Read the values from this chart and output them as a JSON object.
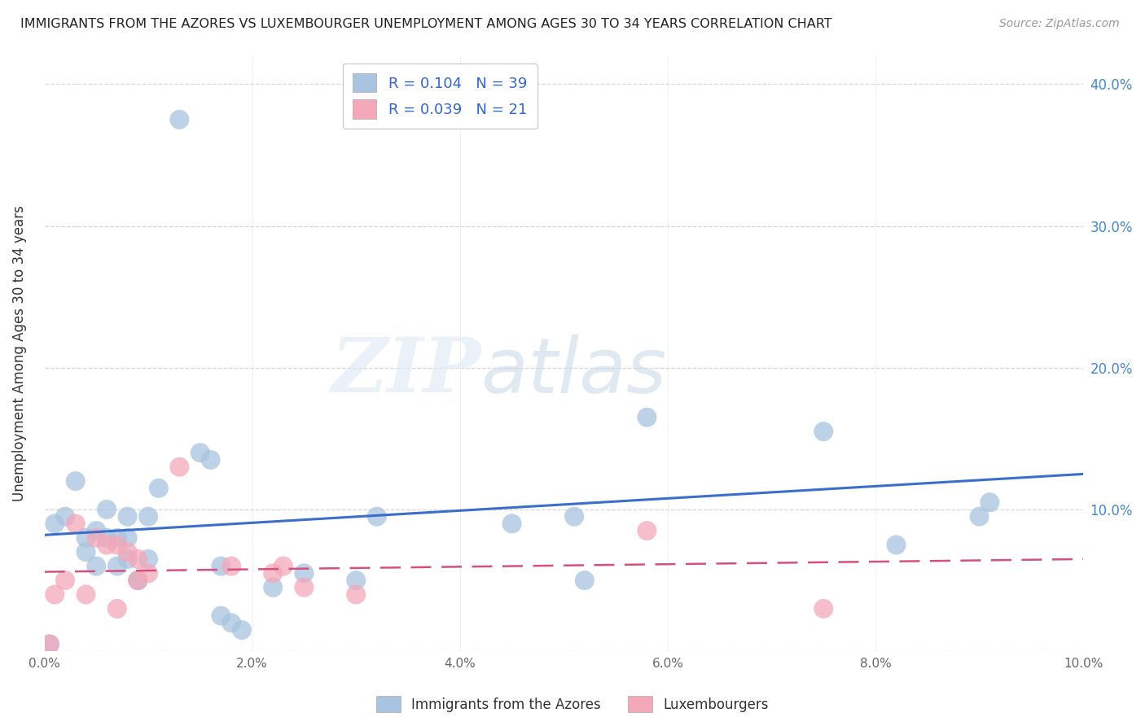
{
  "title": "IMMIGRANTS FROM THE AZORES VS LUXEMBOURGER UNEMPLOYMENT AMONG AGES 30 TO 34 YEARS CORRELATION CHART",
  "source": "Source: ZipAtlas.com",
  "ylabel": "Unemployment Among Ages 30 to 34 years",
  "xlim": [
    0.0,
    0.1
  ],
  "ylim": [
    0.0,
    0.42
  ],
  "xticks": [
    0.0,
    0.02,
    0.04,
    0.06,
    0.08,
    0.1
  ],
  "yticks": [
    0.0,
    0.1,
    0.2,
    0.3,
    0.4
  ],
  "xticklabels": [
    "0.0%",
    "2.0%",
    "4.0%",
    "6.0%",
    "8.0%",
    "10.0%"
  ],
  "yticklabels_right": [
    "",
    "10.0%",
    "20.0%",
    "30.0%",
    "40.0%"
  ],
  "blue_R": 0.104,
  "blue_N": 39,
  "pink_R": 0.039,
  "pink_N": 21,
  "blue_color": "#a8c4e0",
  "pink_color": "#f4a7b9",
  "blue_line_color": "#3a6ecc",
  "pink_line_color": "#d45080",
  "watermark_zip": "ZIP",
  "watermark_atlas": "atlas",
  "legend_label_blue": "Immigrants from the Azores",
  "legend_label_pink": "Luxembourgers",
  "blue_x": [
    0.0005,
    0.001,
    0.002,
    0.003,
    0.004,
    0.004,
    0.005,
    0.005,
    0.006,
    0.006,
    0.007,
    0.007,
    0.008,
    0.008,
    0.008,
    0.009,
    0.009,
    0.01,
    0.01,
    0.011,
    0.013,
    0.015,
    0.016,
    0.017,
    0.017,
    0.018,
    0.019,
    0.022,
    0.025,
    0.03,
    0.032,
    0.045,
    0.051,
    0.052,
    0.058,
    0.075,
    0.082,
    0.09,
    0.091
  ],
  "blue_y": [
    0.005,
    0.09,
    0.095,
    0.12,
    0.07,
    0.08,
    0.06,
    0.085,
    0.08,
    0.1,
    0.06,
    0.08,
    0.065,
    0.08,
    0.095,
    0.05,
    0.05,
    0.095,
    0.065,
    0.115,
    0.375,
    0.14,
    0.135,
    0.025,
    0.06,
    0.02,
    0.015,
    0.045,
    0.055,
    0.05,
    0.095,
    0.09,
    0.095,
    0.05,
    0.165,
    0.155,
    0.075,
    0.095,
    0.105
  ],
  "pink_x": [
    0.0005,
    0.001,
    0.002,
    0.003,
    0.004,
    0.005,
    0.006,
    0.007,
    0.007,
    0.008,
    0.009,
    0.009,
    0.01,
    0.013,
    0.018,
    0.022,
    0.023,
    0.025,
    0.03,
    0.058,
    0.075
  ],
  "pink_y": [
    0.005,
    0.04,
    0.05,
    0.09,
    0.04,
    0.08,
    0.075,
    0.075,
    0.03,
    0.07,
    0.065,
    0.05,
    0.055,
    0.13,
    0.06,
    0.055,
    0.06,
    0.045,
    0.04,
    0.085,
    0.03
  ]
}
